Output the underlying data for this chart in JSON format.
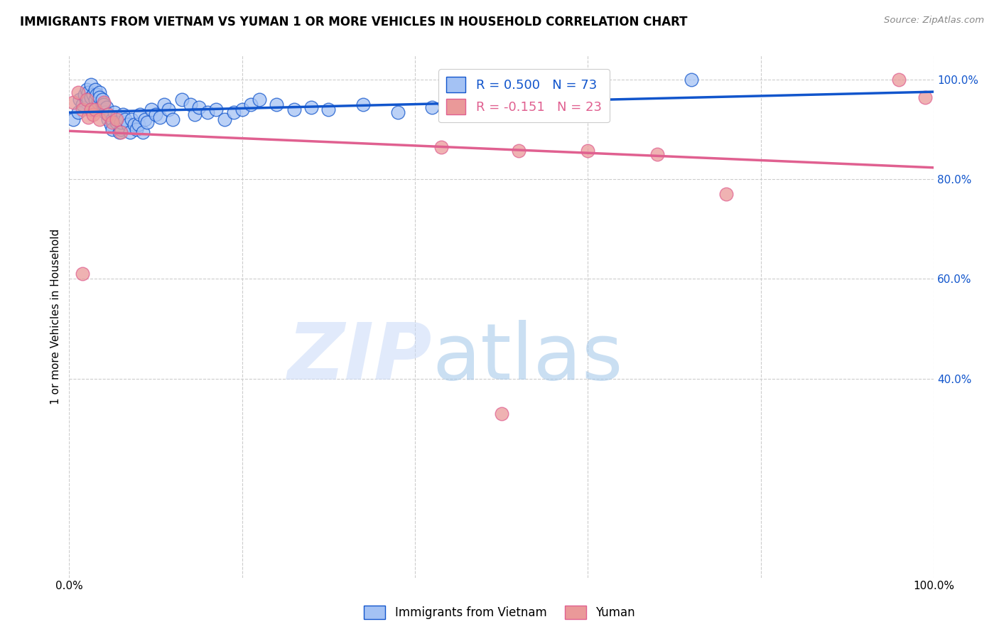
{
  "title": "IMMIGRANTS FROM VIETNAM VS YUMAN 1 OR MORE VEHICLES IN HOUSEHOLD CORRELATION CHART",
  "source": "Source: ZipAtlas.com",
  "ylabel": "1 or more Vehicles in Household",
  "xlim": [
    0.0,
    1.0
  ],
  "ylim": [
    0.0,
    1.05
  ],
  "blue_R": "0.500",
  "blue_N": "73",
  "pink_R": "-0.151",
  "pink_N": "23",
  "legend_label_blue": "Immigrants from Vietnam",
  "legend_label_pink": "Yuman",
  "blue_color": "#a4c2f4",
  "pink_color": "#ea9999",
  "blue_line_color": "#1155cc",
  "pink_line_color": "#e06090",
  "gridline_color": "#cccccc",
  "right_tick_color": "#1155cc",
  "ytick_positions": [
    1.0,
    0.8,
    0.6,
    0.4
  ],
  "ytick_labels": [
    "100.0%",
    "80.0%",
    "60.0%",
    "40.0%"
  ],
  "xtick_positions": [
    0.0,
    1.0
  ],
  "xtick_labels": [
    "0.0%",
    "100.0%"
  ],
  "blue_scatter_x": [
    0.005,
    0.01,
    0.012,
    0.015,
    0.018,
    0.02,
    0.022,
    0.022,
    0.025,
    0.025,
    0.028,
    0.03,
    0.03,
    0.032,
    0.033,
    0.035,
    0.035,
    0.038,
    0.038,
    0.04,
    0.04,
    0.042,
    0.043,
    0.045,
    0.045,
    0.048,
    0.05,
    0.05,
    0.052,
    0.055,
    0.055,
    0.058,
    0.06,
    0.06,
    0.062,
    0.065,
    0.068,
    0.07,
    0.072,
    0.075,
    0.078,
    0.08,
    0.082,
    0.085,
    0.088,
    0.09,
    0.095,
    0.1,
    0.105,
    0.11,
    0.115,
    0.12,
    0.13,
    0.14,
    0.145,
    0.15,
    0.16,
    0.17,
    0.18,
    0.19,
    0.2,
    0.21,
    0.22,
    0.24,
    0.26,
    0.28,
    0.3,
    0.34,
    0.38,
    0.42,
    0.5,
    0.6,
    0.72
  ],
  "blue_scatter_y": [
    0.92,
    0.935,
    0.96,
    0.95,
    0.97,
    0.98,
    0.975,
    0.96,
    0.99,
    0.965,
    0.97,
    0.98,
    0.96,
    0.97,
    0.955,
    0.975,
    0.965,
    0.95,
    0.96,
    0.94,
    0.95,
    0.935,
    0.945,
    0.92,
    0.93,
    0.91,
    0.92,
    0.9,
    0.935,
    0.925,
    0.915,
    0.895,
    0.9,
    0.915,
    0.93,
    0.92,
    0.91,
    0.895,
    0.92,
    0.91,
    0.9,
    0.91,
    0.93,
    0.895,
    0.92,
    0.915,
    0.94,
    0.93,
    0.925,
    0.95,
    0.94,
    0.92,
    0.96,
    0.95,
    0.93,
    0.945,
    0.935,
    0.94,
    0.92,
    0.935,
    0.94,
    0.95,
    0.96,
    0.95,
    0.94,
    0.945,
    0.94,
    0.95,
    0.935,
    0.945,
    0.96,
    0.97,
    1.0
  ],
  "pink_scatter_x": [
    0.005,
    0.01,
    0.015,
    0.02,
    0.022,
    0.025,
    0.028,
    0.03,
    0.035,
    0.04,
    0.045,
    0.05,
    0.055,
    0.06,
    0.43,
    0.52,
    0.6,
    0.68,
    0.76,
    0.5,
    0.96,
    0.99,
    0.015
  ],
  "pink_scatter_y": [
    0.955,
    0.975,
    0.94,
    0.96,
    0.925,
    0.94,
    0.93,
    0.94,
    0.92,
    0.955,
    0.93,
    0.915,
    0.92,
    0.895,
    0.865,
    0.858,
    0.858,
    0.85,
    0.77,
    0.33,
    1.0,
    0.965,
    0.61
  ]
}
